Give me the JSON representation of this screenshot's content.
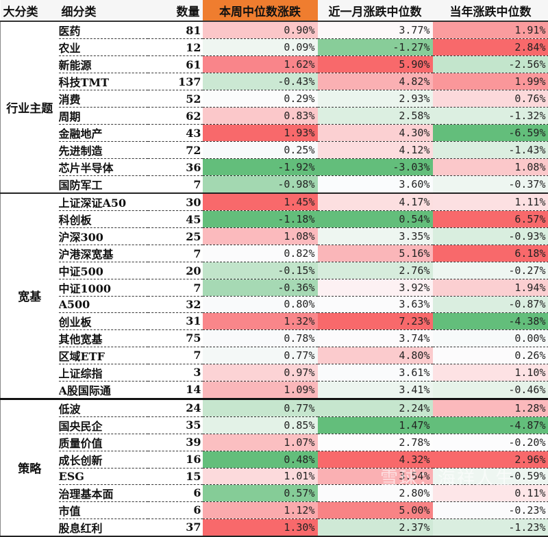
{
  "headers": {
    "category": "大分类",
    "subcategory": "细分类",
    "count": "数量",
    "week_median": "本周中位数涨跌",
    "month_median": "近一月涨跌中位数",
    "ytd_median": "当年涨跌中位数"
  },
  "colors": {
    "header_week_bg": "#ef7d2f",
    "strong_red": "#f8696b",
    "strong_green": "#63be7b",
    "white": "#ffffff"
  },
  "groups": [
    {
      "name": "行业主题",
      "rows": [
        {
          "name": "医药",
          "count": "81",
          "week": "0.90%",
          "month": "3.77%",
          "ytd": "1.91%",
          "wc": "#fbc6c8",
          "mc": "#fdf8f9",
          "yc": "#fa9c9e"
        },
        {
          "name": "农业",
          "count": "12",
          "week": "0.09%",
          "month": "-1.27%",
          "ytd": "2.84%",
          "wc": "#eff6f1",
          "mc": "#88cd99",
          "yc": "#f8696b"
        },
        {
          "name": "新能源",
          "count": "61",
          "week": "1.62%",
          "month": "5.90%",
          "ytd": "-2.56%",
          "wc": "#f9858a",
          "mc": "#f8696b",
          "yc": "#c3e5cc"
        },
        {
          "name": "科技TMT",
          "count": "137",
          "week": "-0.43%",
          "month": "4.82%",
          "ytd": "1.99%",
          "wc": "#cbe8d3",
          "mc": "#fab0b3",
          "yc": "#fa979a"
        },
        {
          "name": "消费",
          "count": "52",
          "week": "0.29%",
          "month": "2.93%",
          "ytd": "0.76%",
          "wc": "#fbfcfc",
          "mc": "#ebf5ee",
          "yc": "#fcd9db"
        },
        {
          "name": "周期",
          "count": "62",
          "week": "0.83%",
          "month": "2.58%",
          "ytd": "-1.32%",
          "wc": "#fbc8ca",
          "mc": "#dcefe1",
          "yc": "#dcefe1"
        },
        {
          "name": "金融地产",
          "count": "43",
          "week": "1.93%",
          "month": "4.30%",
          "ytd": "-6.59%",
          "wc": "#f8696b",
          "mc": "#fbd0d2",
          "yc": "#63be7b"
        },
        {
          "name": "先进制造",
          "count": "72",
          "week": "0.25%",
          "month": "4.12%",
          "ytd": "-1.43%",
          "wc": "#f8fafb",
          "mc": "#fcdcde",
          "yc": "#dbeee0"
        },
        {
          "name": "芯片半导体",
          "count": "36",
          "week": "-1.92%",
          "month": "-3.03%",
          "ytd": "1.08%",
          "wc": "#63be7b",
          "mc": "#63be7b",
          "yc": "#fbc8ca"
        },
        {
          "name": "国防军工",
          "count": "7",
          "week": "-0.98%",
          "month": "3.60%",
          "ytd": "-0.37%",
          "wc": "#a3d8b1",
          "mc": "#fafcfd",
          "yc": "#eef6f1"
        }
      ]
    },
    {
      "name": "宽基",
      "rows": [
        {
          "name": "上证深证A50",
          "count": "30",
          "week": "1.45%",
          "month": "4.17%",
          "ytd": "1.11%",
          "wc": "#f8696b",
          "mc": "#fcdfe0",
          "yc": "#fce0e2"
        },
        {
          "name": "科创板",
          "count": "45",
          "week": "-1.18%",
          "month": "0.54%",
          "ytd": "6.57%",
          "wc": "#63be7b",
          "mc": "#63be7b",
          "yc": "#f8696b"
        },
        {
          "name": "沪深300",
          "count": "25",
          "week": "1.08%",
          "month": "3.35%",
          "ytd": "-0.93%",
          "wc": "#fbbabd",
          "mc": "#eef6f1",
          "yc": "#d9eedf"
        },
        {
          "name": "沪港深宽基",
          "count": "7",
          "week": "0.82%",
          "month": "5.16%",
          "ytd": "6.18%",
          "wc": "#fbfbfc",
          "mc": "#fab6b9",
          "yc": "#f8696b"
        },
        {
          "name": "中证500",
          "count": "20",
          "week": "-0.15%",
          "month": "2.76%",
          "ytd": "-0.27%",
          "wc": "#c1e4ca",
          "mc": "#d6ecdc",
          "yc": "#eef6f1"
        },
        {
          "name": "中证1000",
          "count": "7",
          "week": "-0.36%",
          "month": "3.92%",
          "ytd": "1.94%",
          "wc": "#a6d9b4",
          "mc": "#fdf1f3",
          "yc": "#fbcfd1"
        },
        {
          "name": "A500",
          "count": "32",
          "week": "0.80%",
          "month": "3.63%",
          "ytd": "-0.87%",
          "wc": "#f9fafb",
          "mc": "#fbfbfc",
          "yc": "#daeee0"
        },
        {
          "name": "创业板",
          "count": "31",
          "week": "1.32%",
          "month": "7.23%",
          "ytd": "-4.38%",
          "wc": "#f9868a",
          "mc": "#f8696b",
          "yc": "#63be7b"
        },
        {
          "name": "其他宽基",
          "count": "75",
          "week": "0.78%",
          "month": "3.74%",
          "ytd": "0.00%",
          "wc": "#f9fafb",
          "mc": "#fcfbfc",
          "yc": "#f7fafa"
        },
        {
          "name": "区域ETF",
          "count": "7",
          "week": "0.77%",
          "month": "4.80%",
          "ytd": "0.26%",
          "wc": "#f4f8f7",
          "mc": "#fbcbcd",
          "yc": "#fcfbfc"
        },
        {
          "name": "上证综指",
          "count": "3",
          "week": "0.97%",
          "month": "3.61%",
          "ytd": "1.10%",
          "wc": "#fcd3d5",
          "mc": "#fafbfc",
          "yc": "#fde2e4"
        },
        {
          "name": "A股国际通",
          "count": "14",
          "week": "1.09%",
          "month": "3.41%",
          "ytd": "-0.46%",
          "wc": "#fab7ba",
          "mc": "#ecf5ef",
          "yc": "#e6f3e9"
        }
      ]
    },
    {
      "name": "策略",
      "rows": [
        {
          "name": "低波",
          "count": "24",
          "week": "0.77%",
          "month": "2.24%",
          "ytd": "1.28%",
          "wc": "#c6e6ce",
          "mc": "#c6e6ce",
          "yc": "#fbb9bc"
        },
        {
          "name": "国央民企",
          "count": "35",
          "week": "0.85%",
          "month": "1.47%",
          "ytd": "-4.87%",
          "wc": "#e3f2e7",
          "mc": "#63be7b",
          "yc": "#63be7b"
        },
        {
          "name": "质量价值",
          "count": "39",
          "week": "1.07%",
          "month": "2.78%",
          "ytd": "-0.20%",
          "wc": "#fbbfc1",
          "mc": "#fdfdfd",
          "yc": "#fcfcfd"
        },
        {
          "name": "成长创新",
          "count": "16",
          "week": "0.48%",
          "month": "4.32%",
          "ytd": "2.96%",
          "wc": "#63be7b",
          "mc": "#f8696b",
          "yc": "#f8696b"
        },
        {
          "name": "ESG",
          "count": "15",
          "week": "1.01%",
          "month": "3.54%",
          "ytd": "-0.59%",
          "wc": "#fcdadc",
          "mc": "#fab0b3",
          "yc": "#eef6f1"
        },
        {
          "name": "治理基本面",
          "count": "6",
          "week": "0.57%",
          "month": "2.80%",
          "ytd": "0.11%",
          "wc": "#85cc97",
          "mc": "#fbfbfc",
          "yc": "#fde6e8"
        },
        {
          "name": "市值",
          "count": "6",
          "week": "1.12%",
          "month": "5.00%",
          "ytd": "-0.23%",
          "wc": "#faaaad",
          "mc": "#f88385",
          "yc": "#fbfbfc"
        },
        {
          "name": "股息红利",
          "count": "37",
          "week": "1.30%",
          "month": "2.37%",
          "ytd": "-1.23%",
          "wc": "#f8696b",
          "mc": "#cfe9d6",
          "yc": "#daeee0"
        }
      ]
    }
  ],
  "watermark": "雪球：海祥人生"
}
